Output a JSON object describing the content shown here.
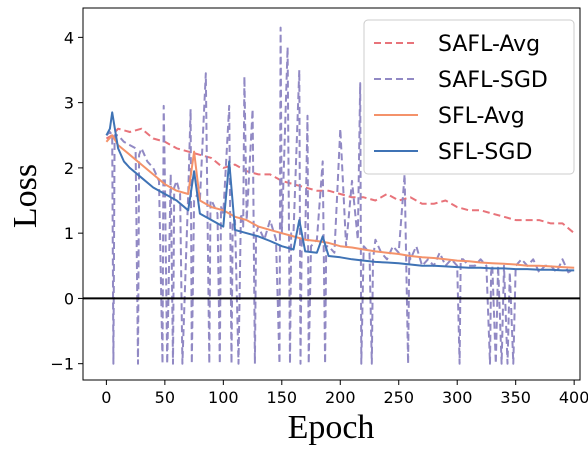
{
  "chart_data": {
    "type": "line",
    "xlabel": "Epoch",
    "ylabel": "Loss",
    "xlim": [
      -20,
      405
    ],
    "ylim": [
      -1.25,
      4.45
    ],
    "xticks": [
      0,
      50,
      100,
      150,
      200,
      250,
      300,
      350,
      400
    ],
    "yticks": [
      -1,
      0,
      1,
      2,
      3,
      4
    ],
    "reference_line": {
      "y": 0,
      "color": "#000000"
    },
    "legend_position": "top-right",
    "series": [
      {
        "name": "SAFL-Avg",
        "color": "#E8737A",
        "dash": "dashed",
        "x": [
          0,
          5,
          10,
          20,
          30,
          40,
          50,
          60,
          70,
          80,
          90,
          100,
          110,
          120,
          130,
          140,
          150,
          160,
          170,
          180,
          190,
          200,
          210,
          220,
          230,
          240,
          250,
          260,
          270,
          280,
          290,
          300,
          310,
          320,
          330,
          340,
          350,
          360,
          370,
          380,
          390,
          400
        ],
        "values": [
          2.45,
          2.5,
          2.6,
          2.55,
          2.6,
          2.45,
          2.4,
          2.3,
          2.25,
          2.2,
          2.15,
          2.0,
          2.05,
          1.95,
          1.9,
          1.9,
          1.8,
          1.75,
          1.7,
          1.65,
          1.65,
          1.6,
          1.55,
          1.55,
          1.5,
          1.6,
          1.5,
          1.55,
          1.45,
          1.45,
          1.5,
          1.4,
          1.35,
          1.35,
          1.3,
          1.25,
          1.2,
          1.2,
          1.2,
          1.15,
          1.15,
          1.0
        ]
      },
      {
        "name": "SAFL-SGD",
        "color": "#9189C4",
        "dash": "dashed",
        "x": [
          0,
          3,
          5,
          6,
          7,
          10,
          15,
          20,
          25,
          27,
          28,
          30,
          35,
          40,
          45,
          48,
          49,
          50,
          52,
          55,
          57,
          58,
          60,
          63,
          65,
          70,
          72,
          73,
          75,
          78,
          80,
          85,
          88,
          89,
          90,
          95,
          97,
          98,
          100,
          105,
          107,
          108,
          110,
          113,
          115,
          117,
          118,
          120,
          125,
          127,
          128,
          130,
          135,
          140,
          145,
          148,
          149,
          150,
          155,
          157,
          158,
          160,
          165,
          166,
          167,
          170,
          172,
          173,
          175,
          180,
          185,
          187,
          188,
          190,
          195,
          200,
          205,
          210,
          215,
          217,
          218,
          220,
          225,
          227,
          228,
          230,
          235,
          240,
          245,
          250,
          255,
          258,
          259,
          260,
          265,
          270,
          275,
          280,
          285,
          290,
          295,
          300,
          302,
          303,
          305,
          310,
          315,
          320,
          325,
          328,
          329,
          330,
          333,
          335,
          338,
          340,
          343,
          345,
          348,
          350,
          355,
          360,
          365,
          370,
          375,
          380,
          385,
          390,
          395,
          400
        ],
        "values": [
          2.5,
          2.55,
          2.5,
          -1.0,
          2.5,
          2.5,
          2.4,
          2.35,
          2.3,
          -1.0,
          2.2,
          2.3,
          2.1,
          2.0,
          1.8,
          -1.0,
          2.95,
          1.8,
          -1.0,
          1.9,
          -1.0,
          1.7,
          1.8,
          1.6,
          -1.0,
          1.6,
          2.9,
          -1.0,
          1.5,
          1.6,
          1.5,
          3.45,
          -1.0,
          1.5,
          1.5,
          1.3,
          -1.0,
          1.4,
          1.3,
          2.95,
          -1.0,
          1.2,
          1.2,
          -1.0,
          1.3,
          1.1,
          3.4,
          1.2,
          2.9,
          -1.0,
          1.0,
          1.1,
          0.9,
          1.2,
          0.9,
          -1.0,
          4.15,
          1.0,
          3.85,
          -1.0,
          1.0,
          1.0,
          3.5,
          -1.0,
          0.9,
          0.9,
          2.8,
          -1.0,
          0.8,
          0.9,
          2.1,
          -1.0,
          0.8,
          0.8,
          0.7,
          2.6,
          0.8,
          1.8,
          0.9,
          3.3,
          -1.0,
          0.8,
          0.7,
          -1.0,
          0.6,
          0.9,
          0.7,
          0.6,
          0.8,
          0.7,
          1.9,
          -1.0,
          0.7,
          0.6,
          0.8,
          0.5,
          0.6,
          0.5,
          0.7,
          0.5,
          0.6,
          0.5,
          -1.0,
          0.6,
          0.6,
          0.5,
          0.5,
          0.6,
          0.5,
          -1.0,
          0.4,
          0.5,
          -1.0,
          0.5,
          -1.0,
          0.5,
          -1.0,
          0.4,
          -1.0,
          0.5,
          0.6,
          0.5,
          0.6,
          0.4,
          0.5,
          0.5,
          0.4,
          0.6,
          0.4,
          0.45
        ]
      },
      {
        "name": "SFL-Avg",
        "color": "#F4926A",
        "dash": "solid",
        "x": [
          0,
          5,
          10,
          20,
          30,
          40,
          50,
          60,
          70,
          75,
          80,
          90,
          100,
          110,
          120,
          130,
          140,
          150,
          160,
          170,
          180,
          190,
          200,
          210,
          220,
          230,
          240,
          250,
          260,
          270,
          280,
          290,
          300,
          310,
          320,
          330,
          340,
          350,
          360,
          370,
          380,
          390,
          400
        ],
        "values": [
          2.4,
          2.5,
          2.35,
          2.2,
          2.05,
          1.9,
          1.75,
          1.65,
          1.6,
          2.25,
          1.5,
          1.4,
          1.35,
          1.25,
          1.2,
          1.1,
          1.05,
          1.0,
          0.95,
          0.9,
          0.88,
          0.85,
          0.8,
          0.78,
          0.75,
          0.72,
          0.7,
          0.68,
          0.65,
          0.63,
          0.62,
          0.6,
          0.58,
          0.57,
          0.55,
          0.54,
          0.53,
          0.52,
          0.5,
          0.5,
          0.49,
          0.48,
          0.47
        ]
      },
      {
        "name": "SFL-SGD",
        "color": "#3F73B5",
        "dash": "solid",
        "x": [
          0,
          3,
          5,
          10,
          15,
          20,
          30,
          40,
          50,
          60,
          70,
          75,
          80,
          90,
          100,
          105,
          110,
          120,
          130,
          140,
          150,
          160,
          165,
          170,
          180,
          185,
          190,
          200,
          210,
          220,
          230,
          240,
          250,
          260,
          270,
          280,
          290,
          300,
          310,
          320,
          330,
          340,
          350,
          360,
          370,
          380,
          390,
          400
        ],
        "values": [
          2.5,
          2.6,
          2.85,
          2.3,
          2.1,
          2.0,
          1.85,
          1.7,
          1.6,
          1.5,
          1.35,
          1.95,
          1.3,
          1.2,
          1.1,
          2.1,
          1.05,
          1.0,
          0.95,
          0.88,
          0.8,
          0.75,
          1.2,
          0.72,
          0.7,
          0.95,
          0.65,
          0.63,
          0.6,
          0.58,
          0.56,
          0.55,
          0.54,
          0.52,
          0.5,
          0.5,
          0.49,
          0.48,
          0.47,
          0.47,
          0.46,
          0.46,
          0.45,
          0.45,
          0.44,
          0.44,
          0.43,
          0.43
        ]
      }
    ]
  }
}
